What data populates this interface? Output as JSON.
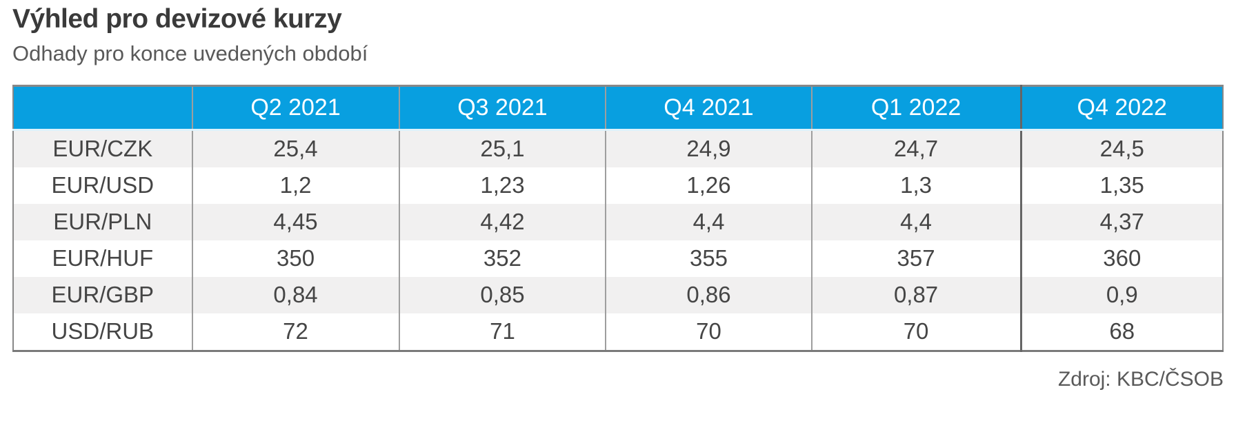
{
  "title": "Výhled pro devizové kurzy",
  "subtitle": "Odhady pro konce uvedených období",
  "source": "Zdroj: KBC/ČSOB",
  "colors": {
    "accent": "#089fe0",
    "header_text": "#ffffff",
    "header_underline": "#ddf2fb",
    "row_alt": "#f1f0f0",
    "row_bg": "#ffffff",
    "border_outer": "#888888",
    "border_bottom": "#7a7a7a",
    "divider": "#9e9e9e",
    "divider_strong": "#656565",
    "cell_text": "#454545",
    "title_text": "#3a3a3a",
    "muted_text": "#595959"
  },
  "chart_data": {
    "type": "table",
    "title": "Výhled pro devizové kurzy",
    "subtitle": "Odhady pro konce uvedených období",
    "columns": [
      "",
      "Q2 2021",
      "Q3 2021",
      "Q4 2021",
      "Q1 2022",
      "Q4 2022"
    ],
    "rows": [
      {
        "label": "EUR/CZK",
        "values": [
          "25,4",
          "25,1",
          "24,9",
          "24,7",
          "24,5"
        ]
      },
      {
        "label": "EUR/USD",
        "values": [
          "1,2",
          "1,23",
          "1,26",
          "1,3",
          "1,35"
        ]
      },
      {
        "label": "EUR/PLN",
        "values": [
          "4,45",
          "4,42",
          "4,4",
          "4,4",
          "4,37"
        ]
      },
      {
        "label": "EUR/HUF",
        "values": [
          "350",
          "352",
          "355",
          "357",
          "360"
        ]
      },
      {
        "label": "EUR/GBP",
        "values": [
          "0,84",
          "0,85",
          "0,86",
          "0,87",
          "0,9"
        ]
      },
      {
        "label": "USD/RUB",
        "values": [
          "72",
          "71",
          "70",
          "70",
          "68"
        ]
      }
    ],
    "source": "Zdroj: KBC/ČSOB",
    "layout": {
      "striping": "first data row shaded, alternating",
      "strong_divider_before_last_column": true,
      "grid": "vertical dividers only, no horizontal rules between rows"
    }
  }
}
